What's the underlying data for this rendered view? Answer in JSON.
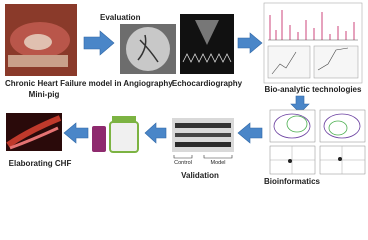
{
  "nodes": [
    {
      "label_lines": [
        "Chronic Heart Failure model in",
        "Mini-pig"
      ]
    },
    {
      "label": "Evaluation"
    },
    {
      "label": "Angiography"
    },
    {
      "label": "Echocardiography"
    },
    {
      "label": "Bio-analytic technologies"
    },
    {
      "label": "Bioinformatics"
    },
    {
      "label": "Validation",
      "groups": [
        "Control",
        "Model"
      ]
    },
    {
      "label": "Elaborating CHF"
    }
  ]
}
